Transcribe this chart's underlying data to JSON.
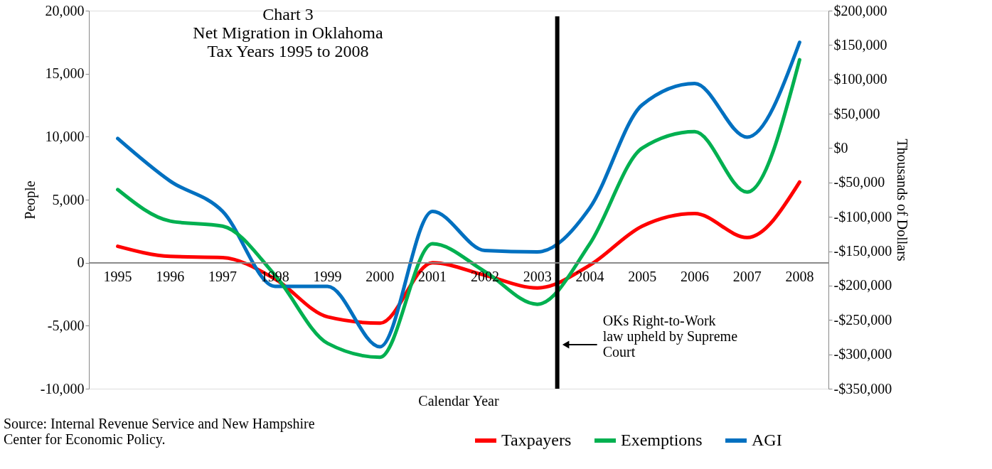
{
  "chart_data": {
    "type": "line",
    "title": "Chart 3\nNet Migration in Oklahoma\nTax Years 1995 to 2008",
    "xlabel": "Calendar Year",
    "ylabel": "People",
    "y2label": "Thousands of Dollars",
    "categories": [
      "1995",
      "1996",
      "1997",
      "1998",
      "1999",
      "2000",
      "2001",
      "2002",
      "2003",
      "2004",
      "2005",
      "2006",
      "2007",
      "2008"
    ],
    "series": [
      {
        "name": "Taxpayers",
        "color": "#ff0000",
        "values": [
          1300,
          500,
          400,
          -1300,
          -4300,
          -4800,
          0,
          -1000,
          -2000,
          -200,
          2900,
          3900,
          2000,
          6400
        ]
      },
      {
        "name": "Exemptions",
        "color": "#00b050",
        "values": [
          5800,
          3300,
          2900,
          -1000,
          -6400,
          -7500,
          1500,
          -700,
          -3300,
          1500,
          9100,
          10400,
          5600,
          16100
        ]
      },
      {
        "name": "AGI",
        "color": "#0070c0",
        "axis": "y2",
        "values": [
          14000,
          -48000,
          -92000,
          -201000,
          -201000,
          -289000,
          -92000,
          -149000,
          -151000,
          -87000,
          63000,
          94000,
          16000,
          154000
        ]
      }
    ],
    "ylim": [
      -10000,
      20000
    ],
    "yticks": [
      {
        "value": -10000,
        "label": "-10,000"
      },
      {
        "value": -5000,
        "label": "-5,000"
      },
      0,
      {
        "value": 5000,
        "label": "5,000"
      },
      {
        "value": 10000,
        "label": "10,000"
      },
      {
        "value": 15000,
        "label": "15,000"
      },
      {
        "value": 20000,
        "label": "20,000"
      }
    ],
    "y2lim": [
      -350000,
      200000
    ],
    "y2ticks": [
      {
        "value": -350000,
        "label": "-$350,000"
      },
      {
        "value": -300000,
        "label": "-$300,000"
      },
      {
        "value": -250000,
        "label": "-$250,000"
      },
      {
        "value": -200000,
        "label": "-$200,000"
      },
      {
        "value": -150000,
        "label": "-$150,000"
      },
      {
        "value": -100000,
        "label": "-$100,000"
      },
      {
        "value": -50000,
        "label": "-$50,000"
      },
      {
        "value": 0,
        "label": "$0"
      },
      {
        "value": 50000,
        "label": "$50,000"
      },
      {
        "value": 100000,
        "label": "$100,000"
      },
      {
        "value": 150000,
        "label": "$150,000"
      },
      {
        "value": 200000,
        "label": "$200,000"
      }
    ],
    "ref_lines": [
      {
        "axis": "x",
        "value": "2003",
        "label": "OKs Right-to-Work\nlaw upheld by Supreme\nCourt",
        "color": "#000000"
      }
    ],
    "annotations": [
      "Source: Internal Revenue Service and New Hampshire\nCenter for Economic Policy."
    ],
    "legend": "bottom right",
    "grid": false,
    "marker": "none",
    "line_style": "solid"
  }
}
